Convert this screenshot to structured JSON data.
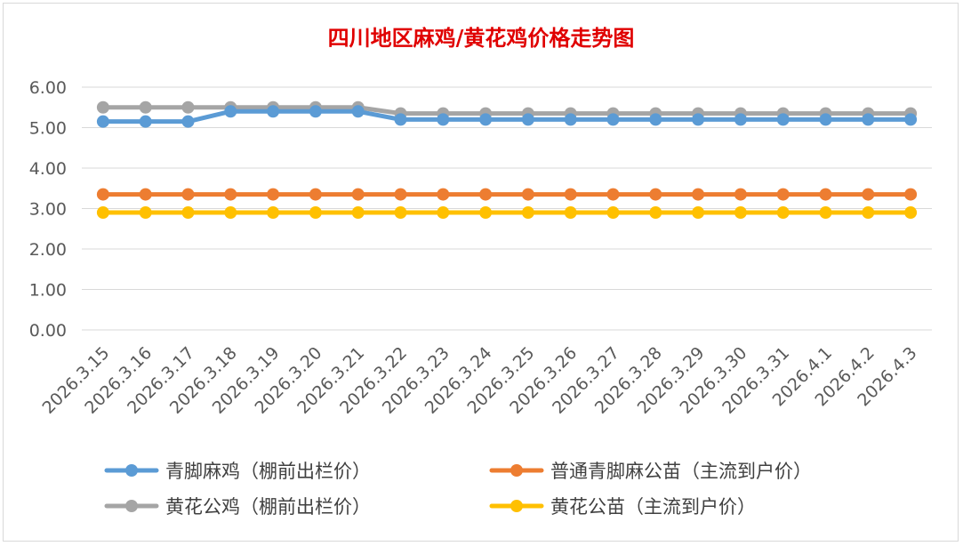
{
  "chart_data": {
    "type": "line",
    "title": "四川地区麻鸡/黄花鸡价格走势图",
    "title_color": "#e00000",
    "xlabel": "",
    "ylabel": "",
    "ylim": [
      0,
      6
    ],
    "y_ticks": [
      "0.00",
      "1.00",
      "2.00",
      "3.00",
      "4.00",
      "5.00",
      "6.00"
    ],
    "grid": true,
    "legend_position": "bottom",
    "categories": [
      "2026.3.15",
      "2026.3.16",
      "2026.3.17",
      "2026.3.18",
      "2026.3.19",
      "2026.3.20",
      "2026.3.21",
      "2026.3.22",
      "2026.3.23",
      "2026.3.24",
      "2026.3.25",
      "2026.3.26",
      "2026.3.27",
      "2026.3.28",
      "2026.3.29",
      "2026.3.30",
      "2026.3.31",
      "2026.4.1",
      "2026.4.2",
      "2026.4.3"
    ],
    "series": [
      {
        "name": "青脚麻鸡（棚前出栏价）",
        "color": "#5b9bd5",
        "values": [
          5.15,
          5.15,
          5.15,
          5.4,
          5.4,
          5.4,
          5.4,
          5.2,
          5.2,
          5.2,
          5.2,
          5.2,
          5.2,
          5.2,
          5.2,
          5.2,
          5.2,
          5.2,
          5.2,
          5.2
        ]
      },
      {
        "name": "普通青脚麻公苗（主流到户价）",
        "color": "#ed7d31",
        "values": [
          3.35,
          3.35,
          3.35,
          3.35,
          3.35,
          3.35,
          3.35,
          3.35,
          3.35,
          3.35,
          3.35,
          3.35,
          3.35,
          3.35,
          3.35,
          3.35,
          3.35,
          3.35,
          3.35,
          3.35
        ]
      },
      {
        "name": "黄花公鸡（棚前出栏价）",
        "color": "#a5a5a5",
        "values": [
          5.5,
          5.5,
          5.5,
          5.5,
          5.5,
          5.5,
          5.5,
          5.35,
          5.35,
          5.35,
          5.35,
          5.35,
          5.35,
          5.35,
          5.35,
          5.35,
          5.35,
          5.35,
          5.35,
          5.35
        ]
      },
      {
        "name": "黄花公苗（主流到户价）",
        "color": "#ffc000",
        "values": [
          2.9,
          2.9,
          2.9,
          2.9,
          2.9,
          2.9,
          2.9,
          2.9,
          2.9,
          2.9,
          2.9,
          2.9,
          2.9,
          2.9,
          2.9,
          2.9,
          2.9,
          2.9,
          2.9,
          2.9
        ]
      }
    ],
    "gridline_color": "#d9d9d9"
  }
}
